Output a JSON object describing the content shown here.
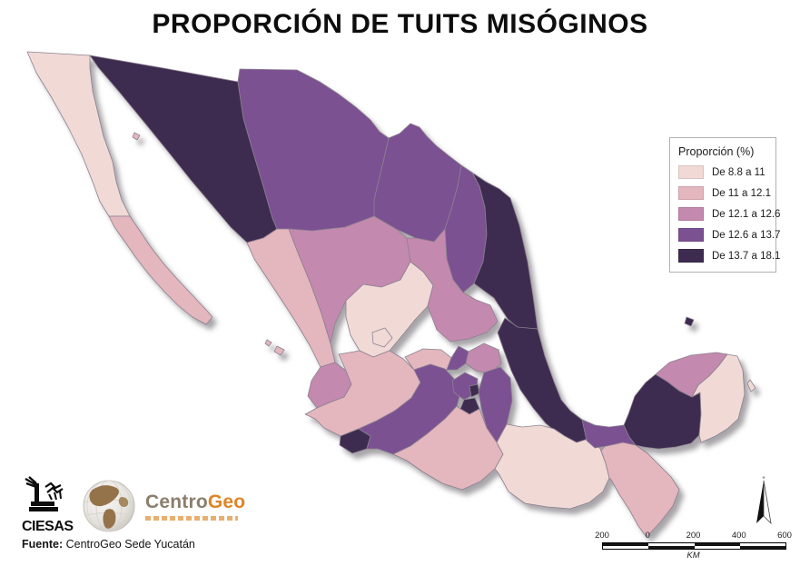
{
  "title": "PROPORCIÓN DE TUITS MISÓGINOS",
  "legend": {
    "title": "Proporción (%)",
    "classes": [
      {
        "label": "De 8.8 a 11",
        "color": "#f1dad6"
      },
      {
        "label": "De 11 a 12.1",
        "color": "#e4b6bd"
      },
      {
        "label": "De 12.1 a 12.6",
        "color": "#c489ae"
      },
      {
        "label": "De 12.6 a 13.7",
        "color": "#7b5192"
      },
      {
        "label": "De 13.7 a 18.1",
        "color": "#3e2c50"
      }
    ]
  },
  "map": {
    "stroke_color": "#8b8190",
    "states": [
      {
        "id": "baja-california",
        "name": "Baja California",
        "class": 1
      },
      {
        "id": "baja-california-sur",
        "name": "Baja California Sur",
        "class": 2
      },
      {
        "id": "sonora",
        "name": "Sonora",
        "class": 5
      },
      {
        "id": "chihuahua",
        "name": "Chihuahua",
        "class": 4
      },
      {
        "id": "coahuila",
        "name": "Coahuila",
        "class": 4
      },
      {
        "id": "nuevo-leon",
        "name": "Nuevo León",
        "class": 4
      },
      {
        "id": "tamaulipas",
        "name": "Tamaulipas",
        "class": 5
      },
      {
        "id": "sinaloa",
        "name": "Sinaloa",
        "class": 2
      },
      {
        "id": "durango",
        "name": "Durango",
        "class": 3
      },
      {
        "id": "zacatecas",
        "name": "Zacatecas",
        "class": 1
      },
      {
        "id": "aguascalientes",
        "name": "Aguascalientes",
        "class": 1
      },
      {
        "id": "san-luis-potosi",
        "name": "San Luis Potosí",
        "class": 3
      },
      {
        "id": "nayarit",
        "name": "Nayarit",
        "class": 3
      },
      {
        "id": "jalisco",
        "name": "Jalisco",
        "class": 2
      },
      {
        "id": "colima",
        "name": "Colima",
        "class": 5
      },
      {
        "id": "michoacan",
        "name": "Michoacán",
        "class": 4
      },
      {
        "id": "guanajuato",
        "name": "Guanajuato",
        "class": 2
      },
      {
        "id": "queretaro",
        "name": "Querétaro",
        "class": 4
      },
      {
        "id": "hidalgo",
        "name": "Hidalgo",
        "class": 3
      },
      {
        "id": "estado-de-mexico",
        "name": "Estado de México",
        "class": 4
      },
      {
        "id": "cdmx",
        "name": "Ciudad de México",
        "class": 5
      },
      {
        "id": "morelos",
        "name": "Morelos",
        "class": 5
      },
      {
        "id": "tlaxcala",
        "name": "Tlaxcala",
        "class": 1
      },
      {
        "id": "puebla",
        "name": "Puebla",
        "class": 4
      },
      {
        "id": "veracruz",
        "name": "Veracruz",
        "class": 5
      },
      {
        "id": "guerrero",
        "name": "Guerrero",
        "class": 2
      },
      {
        "id": "oaxaca",
        "name": "Oaxaca",
        "class": 1
      },
      {
        "id": "chiapas",
        "name": "Chiapas",
        "class": 2
      },
      {
        "id": "tabasco",
        "name": "Tabasco",
        "class": 4
      },
      {
        "id": "campeche",
        "name": "Campeche",
        "class": 5
      },
      {
        "id": "yucatan",
        "name": "Yucatán",
        "class": 3
      },
      {
        "id": "quintana-roo",
        "name": "Quintana Roo",
        "class": 1
      }
    ],
    "islands": [
      {
        "id": "islas-marias",
        "name": "Islas Marías",
        "class": 2
      },
      {
        "id": "isla-golfo",
        "name": "Isla del Golfo",
        "class": 2
      },
      {
        "id": "arrecife-alacranes",
        "name": "Arrecife Alacranes",
        "class": 5
      },
      {
        "id": "cozumel",
        "name": "Cozumel",
        "class": 1
      }
    ]
  },
  "scalebar": {
    "labels": [
      "200",
      "0",
      "200",
      "400",
      "600"
    ],
    "unit": "KM"
  },
  "logos": {
    "ciesas_label": "CIESAS",
    "centrogeo_prefix": "Centro",
    "centrogeo_suffix": "Geo"
  },
  "source": {
    "label": "Fuente:",
    "text": " CentroGeo Sede Yucatán"
  }
}
